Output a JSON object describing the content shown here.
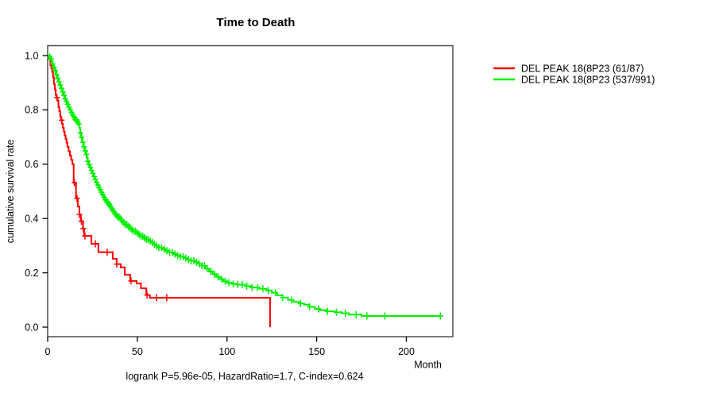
{
  "plot": {
    "title": "Time to Death",
    "y_axis_label": "cumulative survival rate",
    "x_axis_label": "Month",
    "footer": "logrank P=5.96e-05, HazardRatio=1.7, C-index=0.624"
  },
  "chart_data": {
    "type": "line",
    "subtype": "kaplan-meier-step",
    "title": "Time to Death",
    "xlabel": "Month",
    "ylabel": "cumulative survival rate",
    "xlim": [
      0,
      226
    ],
    "ylim": [
      0,
      1.0
    ],
    "grid": false,
    "legend_position": "right-outside",
    "annotation": "logrank P=5.96e-05, HazardRatio=1.7, C-index=0.624",
    "x_ticks": [
      "0",
      "50",
      "100",
      "150",
      "200"
    ],
    "y_ticks": [
      "0.0",
      "0.2",
      "0.4",
      "0.6",
      "0.8",
      "1.0"
    ],
    "series": [
      {
        "name": "DEL PEAK 18(8P23 (61/87)",
        "color": "#ff0000",
        "steps": [
          [
            0,
            1.0
          ],
          [
            0.8,
            0.988
          ],
          [
            1.5,
            0.965
          ],
          [
            2,
            0.954
          ],
          [
            2.5,
            0.94
          ],
          [
            3,
            0.92
          ],
          [
            3.5,
            0.895
          ],
          [
            4,
            0.875
          ],
          [
            4.5,
            0.855
          ],
          [
            5,
            0.845
          ],
          [
            5.5,
            0.834
          ],
          [
            6,
            0.81
          ],
          [
            6.5,
            0.795
          ],
          [
            7,
            0.775
          ],
          [
            7.5,
            0.762
          ],
          [
            8,
            0.748
          ],
          [
            8.5,
            0.734
          ],
          [
            9,
            0.72
          ],
          [
            9.5,
            0.705
          ],
          [
            10,
            0.693
          ],
          [
            10.5,
            0.68
          ],
          [
            11,
            0.664
          ],
          [
            11.7,
            0.648
          ],
          [
            12.4,
            0.632
          ],
          [
            13.1,
            0.616
          ],
          [
            13.8,
            0.6
          ],
          [
            14.5,
            0.532
          ],
          [
            15.8,
            0.474
          ],
          [
            16.8,
            0.444
          ],
          [
            17.7,
            0.415
          ],
          [
            18.5,
            0.39
          ],
          [
            19.7,
            0.363
          ],
          [
            20.3,
            0.336
          ],
          [
            24.4,
            0.307
          ],
          [
            28.3,
            0.276
          ],
          [
            36.3,
            0.252
          ],
          [
            38.5,
            0.232
          ],
          [
            40.8,
            0.22
          ],
          [
            43,
            0.193
          ],
          [
            46,
            0.17
          ],
          [
            49.6,
            0.161
          ],
          [
            52,
            0.143
          ],
          [
            55,
            0.118
          ],
          [
            57,
            0.108
          ],
          [
            124,
            0
          ]
        ],
        "censor_times": [
          5.2,
          7.8,
          14.9,
          16.4,
          17.7,
          18.8,
          19.8,
          20.8,
          26.6,
          33.2,
          38.5,
          46.5,
          55.4,
          60.7,
          66.4
        ]
      },
      {
        "name": "DEL PEAK 18(8P23 (537/991)",
        "color": "#00f000",
        "steps": [
          [
            0,
            1.0
          ],
          [
            0.7,
            0.995
          ],
          [
            1.4,
            0.988
          ],
          [
            2.1,
            0.979
          ],
          [
            2.8,
            0.969
          ],
          [
            3.5,
            0.957
          ],
          [
            4.2,
            0.945
          ],
          [
            4.9,
            0.93
          ],
          [
            5.6,
            0.916
          ],
          [
            6.3,
            0.903
          ],
          [
            7,
            0.891
          ],
          [
            7.7,
            0.879
          ],
          [
            8.4,
            0.866
          ],
          [
            9.1,
            0.853
          ],
          [
            9.8,
            0.841
          ],
          [
            10.5,
            0.83
          ],
          [
            11.2,
            0.82
          ],
          [
            11.9,
            0.81
          ],
          [
            12.6,
            0.8
          ],
          [
            13.3,
            0.79
          ],
          [
            14,
            0.781
          ],
          [
            14.7,
            0.772
          ],
          [
            15.4,
            0.764
          ],
          [
            16.2,
            0.756
          ],
          [
            17,
            0.748
          ],
          [
            17.6,
            0.734
          ],
          [
            18.2,
            0.716
          ],
          [
            18.8,
            0.699
          ],
          [
            19.4,
            0.681
          ],
          [
            20,
            0.664
          ],
          [
            20.6,
            0.649
          ],
          [
            21.2,
            0.636
          ],
          [
            21.8,
            0.623
          ],
          [
            22.4,
            0.611
          ],
          [
            23,
            0.599
          ],
          [
            23.6,
            0.588
          ],
          [
            24.2,
            0.577
          ],
          [
            24.9,
            0.566
          ],
          [
            25.6,
            0.555
          ],
          [
            26.3,
            0.544
          ],
          [
            27,
            0.533
          ],
          [
            27.7,
            0.523
          ],
          [
            28.4,
            0.514
          ],
          [
            29.1,
            0.505
          ],
          [
            29.8,
            0.496
          ],
          [
            30.5,
            0.487
          ],
          [
            31.3,
            0.478
          ],
          [
            32.1,
            0.469
          ],
          [
            32.9,
            0.46
          ],
          [
            33.7,
            0.452
          ],
          [
            34.5,
            0.444
          ],
          [
            35.4,
            0.436
          ],
          [
            36.3,
            0.428
          ],
          [
            37.2,
            0.42
          ],
          [
            38.1,
            0.413
          ],
          [
            39,
            0.406
          ],
          [
            40,
            0.399
          ],
          [
            41,
            0.392
          ],
          [
            42,
            0.385
          ],
          [
            43.2,
            0.378
          ],
          [
            44.4,
            0.371
          ],
          [
            45.6,
            0.365
          ],
          [
            46.8,
            0.359
          ],
          [
            48,
            0.353
          ],
          [
            49.3,
            0.347
          ],
          [
            50.6,
            0.341
          ],
          [
            52,
            0.335
          ],
          [
            53.4,
            0.329
          ],
          [
            54.8,
            0.323
          ],
          [
            56.2,
            0.317
          ],
          [
            57.6,
            0.311
          ],
          [
            59,
            0.305
          ],
          [
            60.5,
            0.299
          ],
          [
            62,
            0.293
          ],
          [
            64,
            0.287
          ],
          [
            66,
            0.281
          ],
          [
            68,
            0.275
          ],
          [
            70,
            0.269
          ],
          [
            72,
            0.264
          ],
          [
            74,
            0.259
          ],
          [
            76,
            0.254
          ],
          [
            78,
            0.249
          ],
          [
            80,
            0.244
          ],
          [
            82,
            0.239
          ],
          [
            84,
            0.233
          ],
          [
            86,
            0.226
          ],
          [
            88,
            0.215
          ],
          [
            90,
            0.205
          ],
          [
            92,
            0.195
          ],
          [
            94,
            0.185
          ],
          [
            96,
            0.177
          ],
          [
            98,
            0.169
          ],
          [
            100,
            0.163
          ],
          [
            103,
            0.159
          ],
          [
            106,
            0.156
          ],
          [
            110,
            0.151
          ],
          [
            114,
            0.146
          ],
          [
            118,
            0.141
          ],
          [
            122,
            0.135
          ],
          [
            125,
            0.127
          ],
          [
            128,
            0.117
          ],
          [
            131,
            0.109
          ],
          [
            134,
            0.1
          ],
          [
            137,
            0.093
          ],
          [
            140,
            0.087
          ],
          [
            143,
            0.083
          ],
          [
            146,
            0.075
          ],
          [
            149,
            0.067
          ],
          [
            152,
            0.062
          ],
          [
            156,
            0.058
          ],
          [
            160,
            0.055
          ],
          [
            164,
            0.051
          ],
          [
            168,
            0.046
          ],
          [
            175,
            0.041
          ],
          [
            219,
            0.041
          ]
        ],
        "censor_times": [
          1.2,
          2,
          2.8,
          3.5,
          4.2,
          4.9,
          5.6,
          6.3,
          7,
          7.7,
          8.4,
          9.1,
          9.8,
          10.5,
          11.2,
          11.9,
          12.6,
          13.3,
          14,
          14.7,
          15.4,
          16.1,
          16.8,
          17.5,
          18.2,
          18.9,
          19.6,
          20.3,
          21,
          21.7,
          22.4,
          23.1,
          23.8,
          24.5,
          25.2,
          25.9,
          26.6,
          27.3,
          28,
          28.7,
          29.4,
          30.1,
          30.8,
          31.5,
          32.2,
          32.9,
          33.6,
          34.3,
          35,
          35.8,
          36.6,
          37.4,
          38.2,
          39,
          39.8,
          40.6,
          41.5,
          42.4,
          43.3,
          44.2,
          45.1,
          46,
          47,
          48,
          49,
          50,
          51,
          52,
          53,
          54,
          55,
          56,
          57.2,
          58.4,
          59.6,
          60.8,
          62,
          63.5,
          65,
          66.5,
          68,
          69.5,
          71,
          72.5,
          74,
          75.5,
          77,
          78.5,
          80,
          81.5,
          83,
          84.5,
          86,
          87.5,
          89,
          91,
          93,
          95,
          97,
          99,
          101,
          103.5,
          106,
          108.5,
          111,
          114,
          117,
          120,
          123,
          127,
          131,
          136,
          141,
          146,
          151,
          156,
          161,
          166,
          172,
          178,
          188,
          219
        ]
      }
    ]
  }
}
